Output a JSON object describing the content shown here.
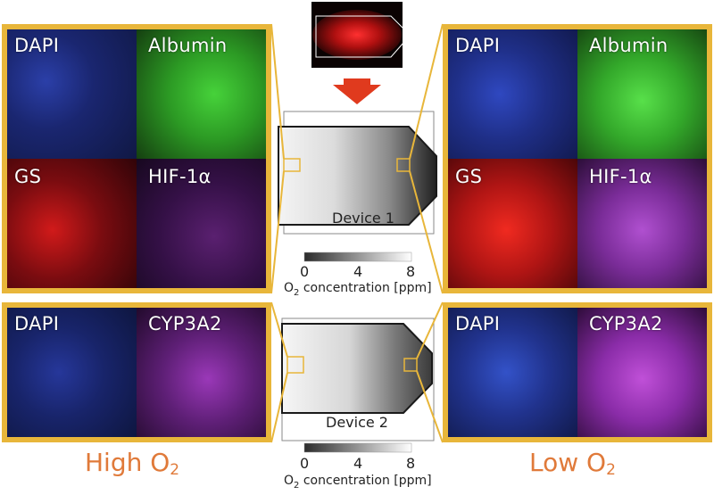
{
  "panels": {
    "top_left": {
      "tl": "DAPI",
      "tr": "Albumin",
      "bl": "GS",
      "br": "HIF-1α"
    },
    "top_right": {
      "tl": "DAPI",
      "tr": "Albumin",
      "bl": "GS",
      "br": "HIF-1α"
    },
    "bottom_left": {
      "l": "DAPI",
      "r": "CYP3A2"
    },
    "bottom_right": {
      "l": "DAPI",
      "r": "CYP3A2"
    }
  },
  "devices": {
    "device1_label": "Device 1",
    "device2_label": "Device 2"
  },
  "colorbar": {
    "ticks": [
      "0",
      "4",
      "8"
    ],
    "title_prefix": "O",
    "title_sub": "2",
    "title_suffix": " concentration [ppm]"
  },
  "conditions": {
    "high_prefix": "High O",
    "high_sub": "2",
    "low_prefix": "Low O",
    "low_sub": "2"
  },
  "colors": {
    "frame": "#e8b63a",
    "arrow": "#e03a1e",
    "condition_text": "#e07a3a",
    "dapi": "#2a3fb0",
    "albumin": "#3fcf3a",
    "gs": "#e82020",
    "hif": "#a040c0",
    "cyp": "#b040c8"
  }
}
